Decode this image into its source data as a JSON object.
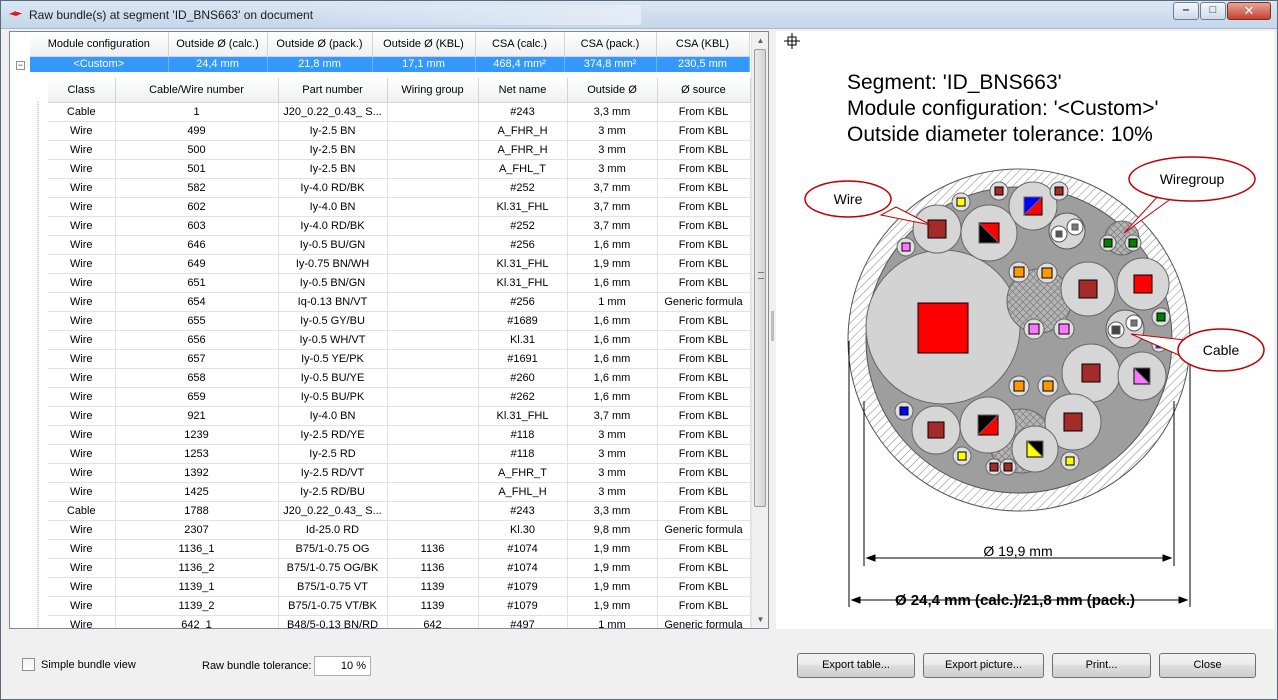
{
  "window": {
    "title": "Raw bundle(s) at segment 'ID_BNS663' on document",
    "min_glyph": "‒",
    "max_glyph": "□",
    "close_glyph": "✕"
  },
  "master_table": {
    "headers": [
      "Module configuration",
      "Outside Ø (calc.)",
      "Outside Ø (pack.)",
      "Outside Ø (KBL)",
      "CSA (calc.)",
      "CSA (pack.)",
      "CSA (KBL)"
    ],
    "row": [
      "<Custom>",
      "24,4 mm",
      "21,8 mm",
      "17,1 mm",
      "468,4 mm²",
      "374,8 mm²",
      "230,5 mm"
    ],
    "expander": "−"
  },
  "detail_table": {
    "headers": [
      "Class",
      "Cable/Wire number",
      "Part number",
      "Wiring group",
      "Net name",
      "Outside Ø",
      "Ø source"
    ],
    "rows": [
      [
        "Cable",
        "1",
        "J20_0.22_0.43_ S...",
        "",
        "#243",
        "3,3 mm",
        "From KBL"
      ],
      [
        "Wire",
        "499",
        "Iy-2.5 BN",
        "",
        "A_FHR_H",
        "3 mm",
        "From KBL"
      ],
      [
        "Wire",
        "500",
        "Iy-2.5 BN",
        "",
        "A_FHR_H",
        "3 mm",
        "From KBL"
      ],
      [
        "Wire",
        "501",
        "Iy-2.5 BN",
        "",
        "A_FHL_T",
        "3 mm",
        "From KBL"
      ],
      [
        "Wire",
        "582",
        "Iy-4.0 RD/BK",
        "",
        "#252",
        "3,7 mm",
        "From KBL"
      ],
      [
        "Wire",
        "602",
        "Iy-4.0 BN",
        "",
        "Kl.31_FHL",
        "3,7 mm",
        "From KBL"
      ],
      [
        "Wire",
        "603",
        "Iy-4.0 RD/BK",
        "",
        "#252",
        "3,7 mm",
        "From KBL"
      ],
      [
        "Wire",
        "646",
        "Iy-0.5 BU/GN",
        "",
        "#256",
        "1,6 mm",
        "From KBL"
      ],
      [
        "Wire",
        "649",
        "Iy-0.75 BN/WH",
        "",
        "Kl.31_FHL",
        "1,9 mm",
        "From KBL"
      ],
      [
        "Wire",
        "651",
        "Iy-0.5 BN/GN",
        "",
        "Kl.31_FHL",
        "1,6 mm",
        "From KBL"
      ],
      [
        "Wire",
        "654",
        "Iq-0.13 BN/VT",
        "",
        "#256",
        "1 mm",
        "Generic formula"
      ],
      [
        "Wire",
        "655",
        "Iy-0.5 GY/BU",
        "",
        "#1689",
        "1,6 mm",
        "From KBL"
      ],
      [
        "Wire",
        "656",
        "Iy-0.5 WH/VT",
        "",
        "Kl.31",
        "1,6 mm",
        "From KBL"
      ],
      [
        "Wire",
        "657",
        "Iy-0.5 YE/PK",
        "",
        "#1691",
        "1,6 mm",
        "From KBL"
      ],
      [
        "Wire",
        "658",
        "Iy-0.5 BU/YE",
        "",
        "#260",
        "1,6 mm",
        "From KBL"
      ],
      [
        "Wire",
        "659",
        "Iy-0.5 BU/PK",
        "",
        "#262",
        "1,6 mm",
        "From KBL"
      ],
      [
        "Wire",
        "921",
        "Iy-4.0 BN",
        "",
        "Kl.31_FHL",
        "3,7 mm",
        "From KBL"
      ],
      [
        "Wire",
        "1239",
        "Iy-2.5 RD/YE",
        "",
        "#118",
        "3 mm",
        "From KBL"
      ],
      [
        "Wire",
        "1253",
        "Iy-2.5 RD",
        "",
        "#118",
        "3 mm",
        "From KBL"
      ],
      [
        "Wire",
        "1392",
        "Iy-2.5 RD/VT",
        "",
        "A_FHR_T",
        "3 mm",
        "From KBL"
      ],
      [
        "Wire",
        "1425",
        "Iy-2.5 RD/BU",
        "",
        "A_FHL_H",
        "3 mm",
        "From KBL"
      ],
      [
        "Cable",
        "1788",
        "J20_0.22_0.43_ S...",
        "",
        "#243",
        "3,3 mm",
        "From KBL"
      ],
      [
        "Wire",
        "2307",
        "Id-25.0 RD",
        "",
        "Kl.30",
        "9,8 mm",
        "Generic formula"
      ],
      [
        "Wire",
        "1136_1",
        "B75/1-0.75 OG",
        "1136",
        "#1074",
        "1,9 mm",
        "From KBL"
      ],
      [
        "Wire",
        "1136_2",
        "B75/1-0.75 OG/BK",
        "1136",
        "#1074",
        "1,9 mm",
        "From KBL"
      ],
      [
        "Wire",
        "1139_1",
        "B75/1-0.75 VT",
        "1139",
        "#1079",
        "1,9 mm",
        "From KBL"
      ],
      [
        "Wire",
        "1139_2",
        "B75/1-0.75 VT/BK",
        "1139",
        "#1079",
        "1,9 mm",
        "From KBL"
      ],
      [
        "Wire",
        "642_1",
        "B48/5-0.13 BN/RD",
        "642",
        "#497",
        "1 mm",
        "Generic formula"
      ]
    ]
  },
  "picture": {
    "line1": "Segment: 'ID_BNS663'",
    "line2": "Module configuration: '<Custom>'",
    "line3": "Outside diameter tolerance: 10%",
    "callout_wire": "Wire",
    "callout_wiregroup": "Wiregroup",
    "callout_cable": "Cable",
    "dim_inner": "Ø 19,9 mm",
    "dim_outer": "Ø 24,4 mm (calc.)/21,8 mm (pack.)"
  },
  "bottom": {
    "simple_view_label": "Simple bundle view",
    "tolerance_label": "Raw bundle tolerance:",
    "tolerance_value": "10 %",
    "export_table": "Export table...",
    "export_picture": "Export picture...",
    "print": "Print...",
    "close": "Close"
  },
  "colors": {
    "selection": "#3399ff",
    "wire_red": "#ff0000",
    "wire_brown": "#a52a2a",
    "bundle_grey": "#c0c0c0"
  }
}
